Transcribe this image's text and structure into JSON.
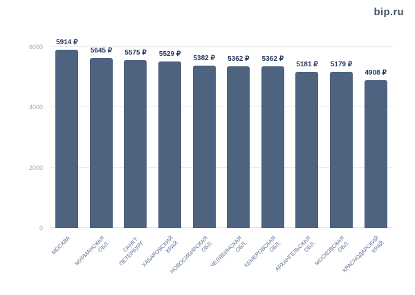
{
  "logo": "bip.ru",
  "chart_data": {
    "type": "bar",
    "title": "",
    "xlabel": "",
    "ylabel": "",
    "categories": [
      "МОСКВА",
      "МУРМАНСКАЯ\nОБЛ.",
      "САНКТ-\nПЕТЕРБУРГ",
      "ХАБАРОВСКИЙ\nКРАЙ",
      "НОВОСИБИРСКАЯ\nОБЛ.",
      "ЧЕЛЯБИНСКАЯ\nОБЛ.",
      "КЕМЕРОВСКАЯ\nОБЛ.",
      "АРХАНГЕЛЬСКАЯ\nОБЛ.",
      "МОСКОВСКАЯ\nОБЛ.",
      "КРАСНОДАРСКИЙ\nКРАЙ"
    ],
    "values": [
      5914,
      5645,
      5575,
      5529,
      5382,
      5362,
      5362,
      5181,
      5179,
      4908
    ],
    "value_labels": [
      "5914 ₽",
      "5645 ₽",
      "5575 ₽",
      "5529 ₽",
      "5382 ₽",
      "5362 ₽",
      "5362 ₽",
      "5181 ₽",
      "5179 ₽",
      "4908 ₽"
    ],
    "value_suffix": " ₽",
    "yticks": [
      0,
      2000,
      4000,
      6000
    ],
    "ylim": [
      0,
      6000
    ],
    "grid": true,
    "legend": "none",
    "bar_color": "#4d6380",
    "value_label_color": "#24395c",
    "category_label_color": "#5d7193",
    "ytick_color": "#a3a7ae"
  }
}
